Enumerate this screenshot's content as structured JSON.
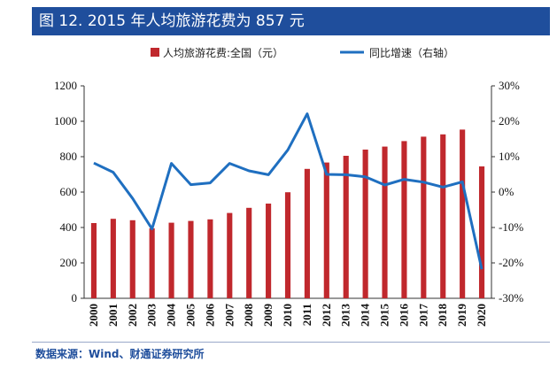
{
  "figure": {
    "title": "图 12. 2015 年人均旅游花费为 857 元",
    "source": "数据来源：Wind、财通证券研究所"
  },
  "chart_data": {
    "type": "bar",
    "categories": [
      "2000",
      "2001",
      "2002",
      "2003",
      "2004",
      "2005",
      "2006",
      "2007",
      "2008",
      "2009",
      "2010",
      "2011",
      "2012",
      "2013",
      "2014",
      "2015",
      "2016",
      "2017",
      "2018",
      "2019",
      "2020"
    ],
    "series": [
      {
        "name": "人均旅游花费:全国（元）",
        "type": "bar",
        "axis": "left",
        "color": "#c0282d",
        "values": [
          425,
          449,
          441,
          395,
          427,
          437,
          446,
          482,
          511,
          535,
          599,
          731,
          767,
          805,
          840,
          857,
          888,
          913,
          926,
          953,
          745
        ]
      },
      {
        "name": "同比增速（右轴）",
        "type": "line",
        "axis": "right",
        "color": "#1f6fc0",
        "values": [
          8.2,
          5.6,
          -1.8,
          -10.4,
          8.1,
          2.1,
          2.6,
          8.1,
          6.0,
          4.9,
          11.9,
          22.1,
          5.0,
          4.9,
          4.3,
          2.0,
          3.6,
          2.8,
          1.4,
          2.9,
          -21.8
        ]
      }
    ],
    "y_left": {
      "min": 0,
      "max": 1200,
      "step": 200,
      "ticks": [
        "0",
        "200",
        "400",
        "600",
        "800",
        "1000",
        "1200"
      ]
    },
    "y_right": {
      "min": -30,
      "max": 30,
      "step": 10,
      "ticks": [
        "-30%",
        "-20%",
        "-10%",
        "0%",
        "10%",
        "20%",
        "30%"
      ]
    },
    "legend_position": "top",
    "grid": false
  }
}
